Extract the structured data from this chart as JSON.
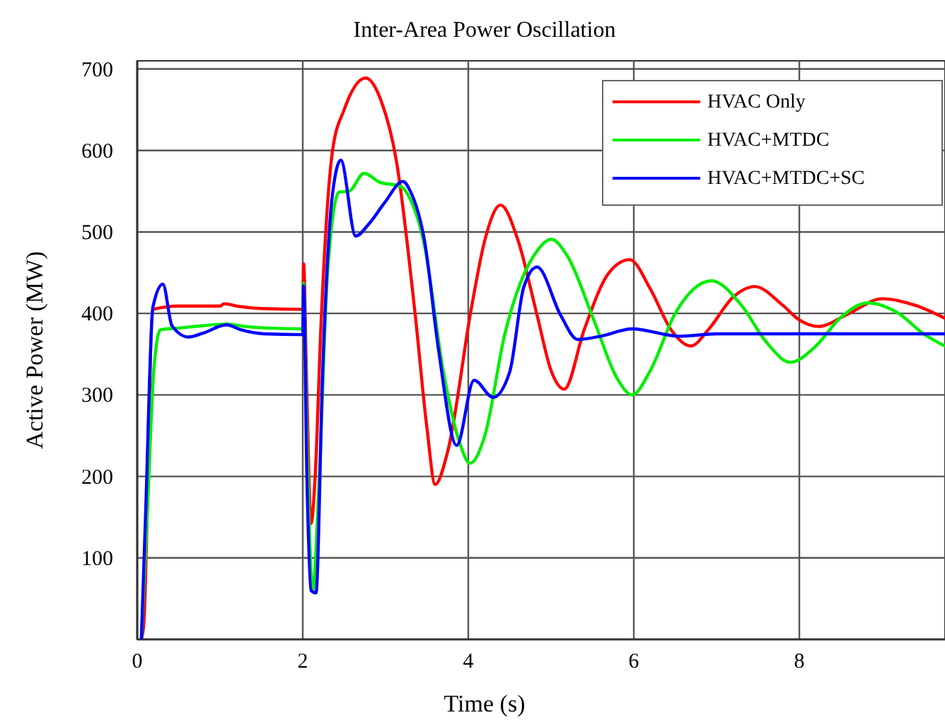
{
  "chart_data": {
    "type": "line",
    "title": "Inter-Area Power Oscillation",
    "xlabel": "Time (s)",
    "ylabel": "Active Power (MW)",
    "xlim": [
      0,
      9.76
    ],
    "ylim": [
      0,
      710
    ],
    "xticks": [
      0,
      2,
      4,
      6,
      8
    ],
    "yticks": [
      100,
      200,
      300,
      400,
      500,
      600,
      700
    ],
    "grid": true,
    "legend": "top right",
    "line_style": "solid",
    "series": [
      {
        "name": "HVAC Only",
        "color": "#ff0000",
        "x": [
          0.05,
          0.08,
          0.19,
          0.5,
          1.0,
          1.05,
          1.2,
          1.5,
          2.0,
          2.01,
          2.05,
          2.1,
          2.15,
          2.22,
          2.36,
          2.5,
          2.76,
          2.95,
          3.13,
          3.36,
          3.5,
          3.6,
          3.75,
          4.04,
          4.2,
          4.39,
          4.6,
          4.84,
          5.0,
          5.16,
          5.4,
          5.7,
          5.95,
          6.2,
          6.45,
          6.69,
          6.9,
          7.2,
          7.46,
          7.8,
          8.0,
          8.23,
          8.6,
          9.0,
          9.4,
          9.76
        ],
        "values": [
          0,
          20,
          405,
          409,
          409,
          412,
          409,
          406,
          405,
          461,
          300,
          142,
          200,
          385,
          600,
          650,
          689,
          660,
          588,
          397,
          260,
          190,
          230,
          408,
          490,
          533,
          490,
          394,
          330,
          307,
          380,
          450,
          466,
          430,
          380,
          360,
          380,
          420,
          433,
          410,
          392,
          384,
          400,
          418,
          410,
          394
        ]
      },
      {
        "name": "HVAC+MTDC",
        "color": "#00ee00",
        "x": [
          0.05,
          0.12,
          0.2,
          0.28,
          0.5,
          0.8,
          1.08,
          1.3,
          1.6,
          2.0,
          2.01,
          2.05,
          2.12,
          2.2,
          2.3,
          2.44,
          2.56,
          2.74,
          2.93,
          3.18,
          3.3,
          3.47,
          3.7,
          3.9,
          4.02,
          4.2,
          4.44,
          4.84,
          5.0,
          5.2,
          5.52,
          5.8,
          5.98,
          6.2,
          6.5,
          6.94,
          7.3,
          7.6,
          7.89,
          8.2,
          8.5,
          8.83,
          9.2,
          9.5,
          9.76
        ],
        "values": [
          0,
          150,
          330,
          380,
          382,
          385,
          387,
          384,
          382,
          381,
          437,
          250,
          61,
          200,
          450,
          549,
          550,
          572,
          561,
          556,
          540,
          484,
          328,
          240,
          216,
          250,
          374,
          478,
          491,
          470,
          391,
          320,
          300,
          330,
          400,
          440,
          410,
          365,
          340,
          360,
          395,
          413,
          400,
          375,
          360
        ]
      },
      {
        "name": "HVAC+MTDC+SC",
        "color": "#0000ff",
        "x": [
          0.05,
          0.1,
          0.19,
          0.31,
          0.42,
          0.62,
          0.8,
          1.08,
          1.25,
          1.53,
          2.0,
          2.01,
          2.05,
          2.1,
          2.16,
          2.24,
          2.36,
          2.46,
          2.64,
          2.8,
          2.99,
          3.21,
          3.3,
          3.47,
          3.64,
          3.86,
          4.07,
          4.3,
          4.5,
          4.67,
          4.83,
          5.12,
          5.32,
          5.6,
          5.98,
          6.55,
          7.0,
          8.0,
          9.0,
          9.76
        ],
        "values": [
          0,
          150,
          408,
          436,
          385,
          371,
          376,
          386,
          380,
          375,
          374,
          434,
          200,
          60,
          57,
          328,
          547,
          588,
          495,
          510,
          536,
          562,
          550,
          490,
          356,
          238,
          318,
          297,
          328,
          432,
          457,
          397,
          368,
          372,
          381,
          372,
          375,
          375,
          375,
          375
        ]
      }
    ]
  }
}
